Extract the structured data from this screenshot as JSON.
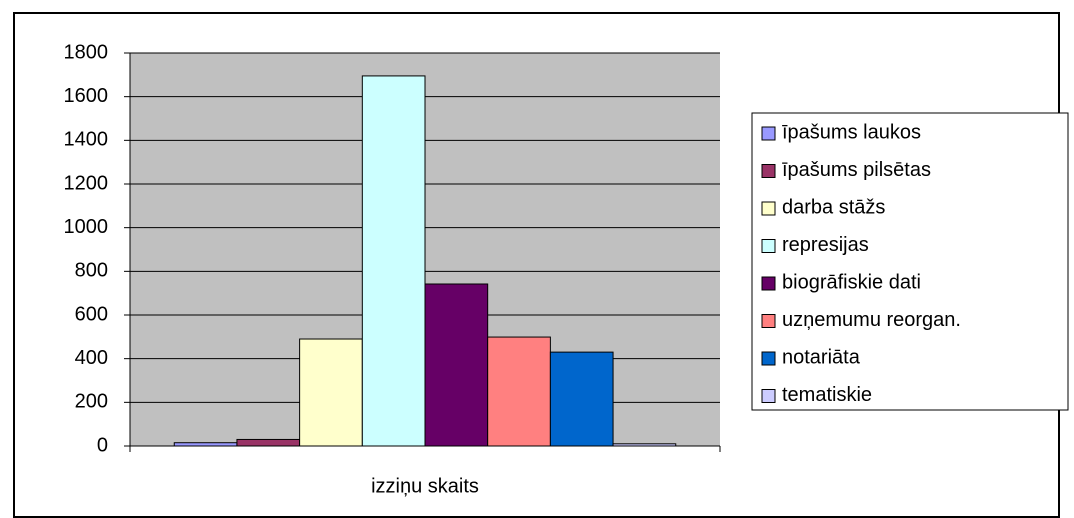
{
  "chart_data": {
    "type": "bar",
    "categories": [
      "izziņu skaits"
    ],
    "series": [
      {
        "name": "īpašums laukos",
        "color": "#9999ff",
        "values": [
          15
        ]
      },
      {
        "name": "īpašums pilsētas",
        "color": "#993366",
        "values": [
          30
        ]
      },
      {
        "name": "darba stāžs",
        "color": "#ffffcc",
        "values": [
          490
        ]
      },
      {
        "name": "represijas",
        "color": "#ccffff",
        "values": [
          1695
        ]
      },
      {
        "name": "biogrāfiskie dati",
        "color": "#660066",
        "values": [
          742
        ]
      },
      {
        "name": "uzņemumu reorgan.",
        "color": "#ff8080",
        "values": [
          499
        ]
      },
      {
        "name": "notariāta",
        "color": "#0066cc",
        "values": [
          430
        ]
      },
      {
        "name": "tematiskie",
        "color": "#ccccff",
        "values": [
          10
        ]
      }
    ],
    "ylim": [
      0,
      1800
    ],
    "yticks": [
      0,
      200,
      400,
      600,
      800,
      1000,
      1200,
      1400,
      1600,
      1800
    ],
    "grid": true,
    "legend": "right"
  }
}
